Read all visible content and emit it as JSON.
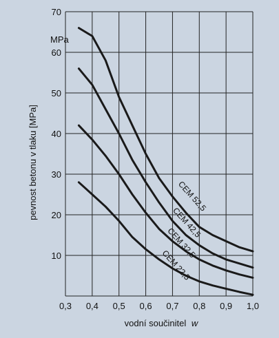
{
  "chart_data": {
    "type": "line",
    "title": "",
    "xlabel": "vodní součinitel",
    "xlabel_symbol": "w",
    "ylabel": "pevnost betonu v tlaku [MPa]",
    "yunit": "MPa",
    "xlim": [
      0.3,
      1.0
    ],
    "ylim": [
      0,
      70
    ],
    "xticks": [
      "0,3",
      "0,4",
      "0,5",
      "0,6",
      "0,7",
      "0,8",
      "0,9",
      "1,0"
    ],
    "yticks": [
      "10",
      "20",
      "30",
      "40",
      "50",
      "60",
      "70"
    ],
    "grid": true,
    "series": [
      {
        "name": "CEM 52,5",
        "x": [
          0.35,
          0.4,
          0.45,
          0.5,
          0.55,
          0.6,
          0.65,
          0.7,
          0.75,
          0.8,
          0.85,
          0.9,
          0.95,
          1.0
        ],
        "y": [
          66,
          64,
          58,
          49,
          42,
          35,
          29,
          24.5,
          20.5,
          17,
          15,
          13.5,
          12,
          11
        ]
      },
      {
        "name": "CEM 42,5",
        "x": [
          0.35,
          0.4,
          0.45,
          0.5,
          0.55,
          0.6,
          0.65,
          0.7,
          0.75,
          0.8,
          0.85,
          0.9,
          0.95,
          1.0
        ],
        "y": [
          56,
          52,
          46,
          40,
          33.5,
          28,
          23,
          18.5,
          15,
          12.5,
          10.5,
          9,
          8,
          7
        ]
      },
      {
        "name": "CEM 32,5",
        "x": [
          0.35,
          0.4,
          0.45,
          0.5,
          0.55,
          0.6,
          0.65,
          0.7,
          0.75,
          0.8,
          0.85,
          0.9,
          0.95,
          1.0
        ],
        "y": [
          42,
          38.5,
          34.5,
          30,
          25,
          20.5,
          16.5,
          13.5,
          11,
          9,
          7.5,
          6.3,
          5.3,
          4.5
        ]
      },
      {
        "name": "CEM 22,5",
        "x": [
          0.35,
          0.4,
          0.45,
          0.5,
          0.55,
          0.6,
          0.65,
          0.7,
          0.75,
          0.8,
          0.85,
          0.9,
          0.95,
          1.0
        ],
        "y": [
          28,
          25,
          22,
          18.5,
          14.5,
          11.5,
          9,
          6.8,
          5,
          3.6,
          2.6,
          1.8,
          1,
          0.3
        ]
      }
    ]
  }
}
